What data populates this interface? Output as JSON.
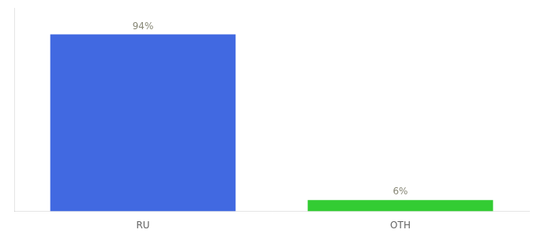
{
  "chart_data": {
    "type": "bar",
    "categories": [
      "RU",
      "OTH"
    ],
    "values": [
      94,
      6
    ],
    "value_labels": [
      "94%",
      "6%"
    ],
    "colors": [
      "#4169e1",
      "#33cc33"
    ],
    "ylim": [
      0,
      108
    ],
    "data_labels": true,
    "tick_labels": "x",
    "grid": false
  }
}
